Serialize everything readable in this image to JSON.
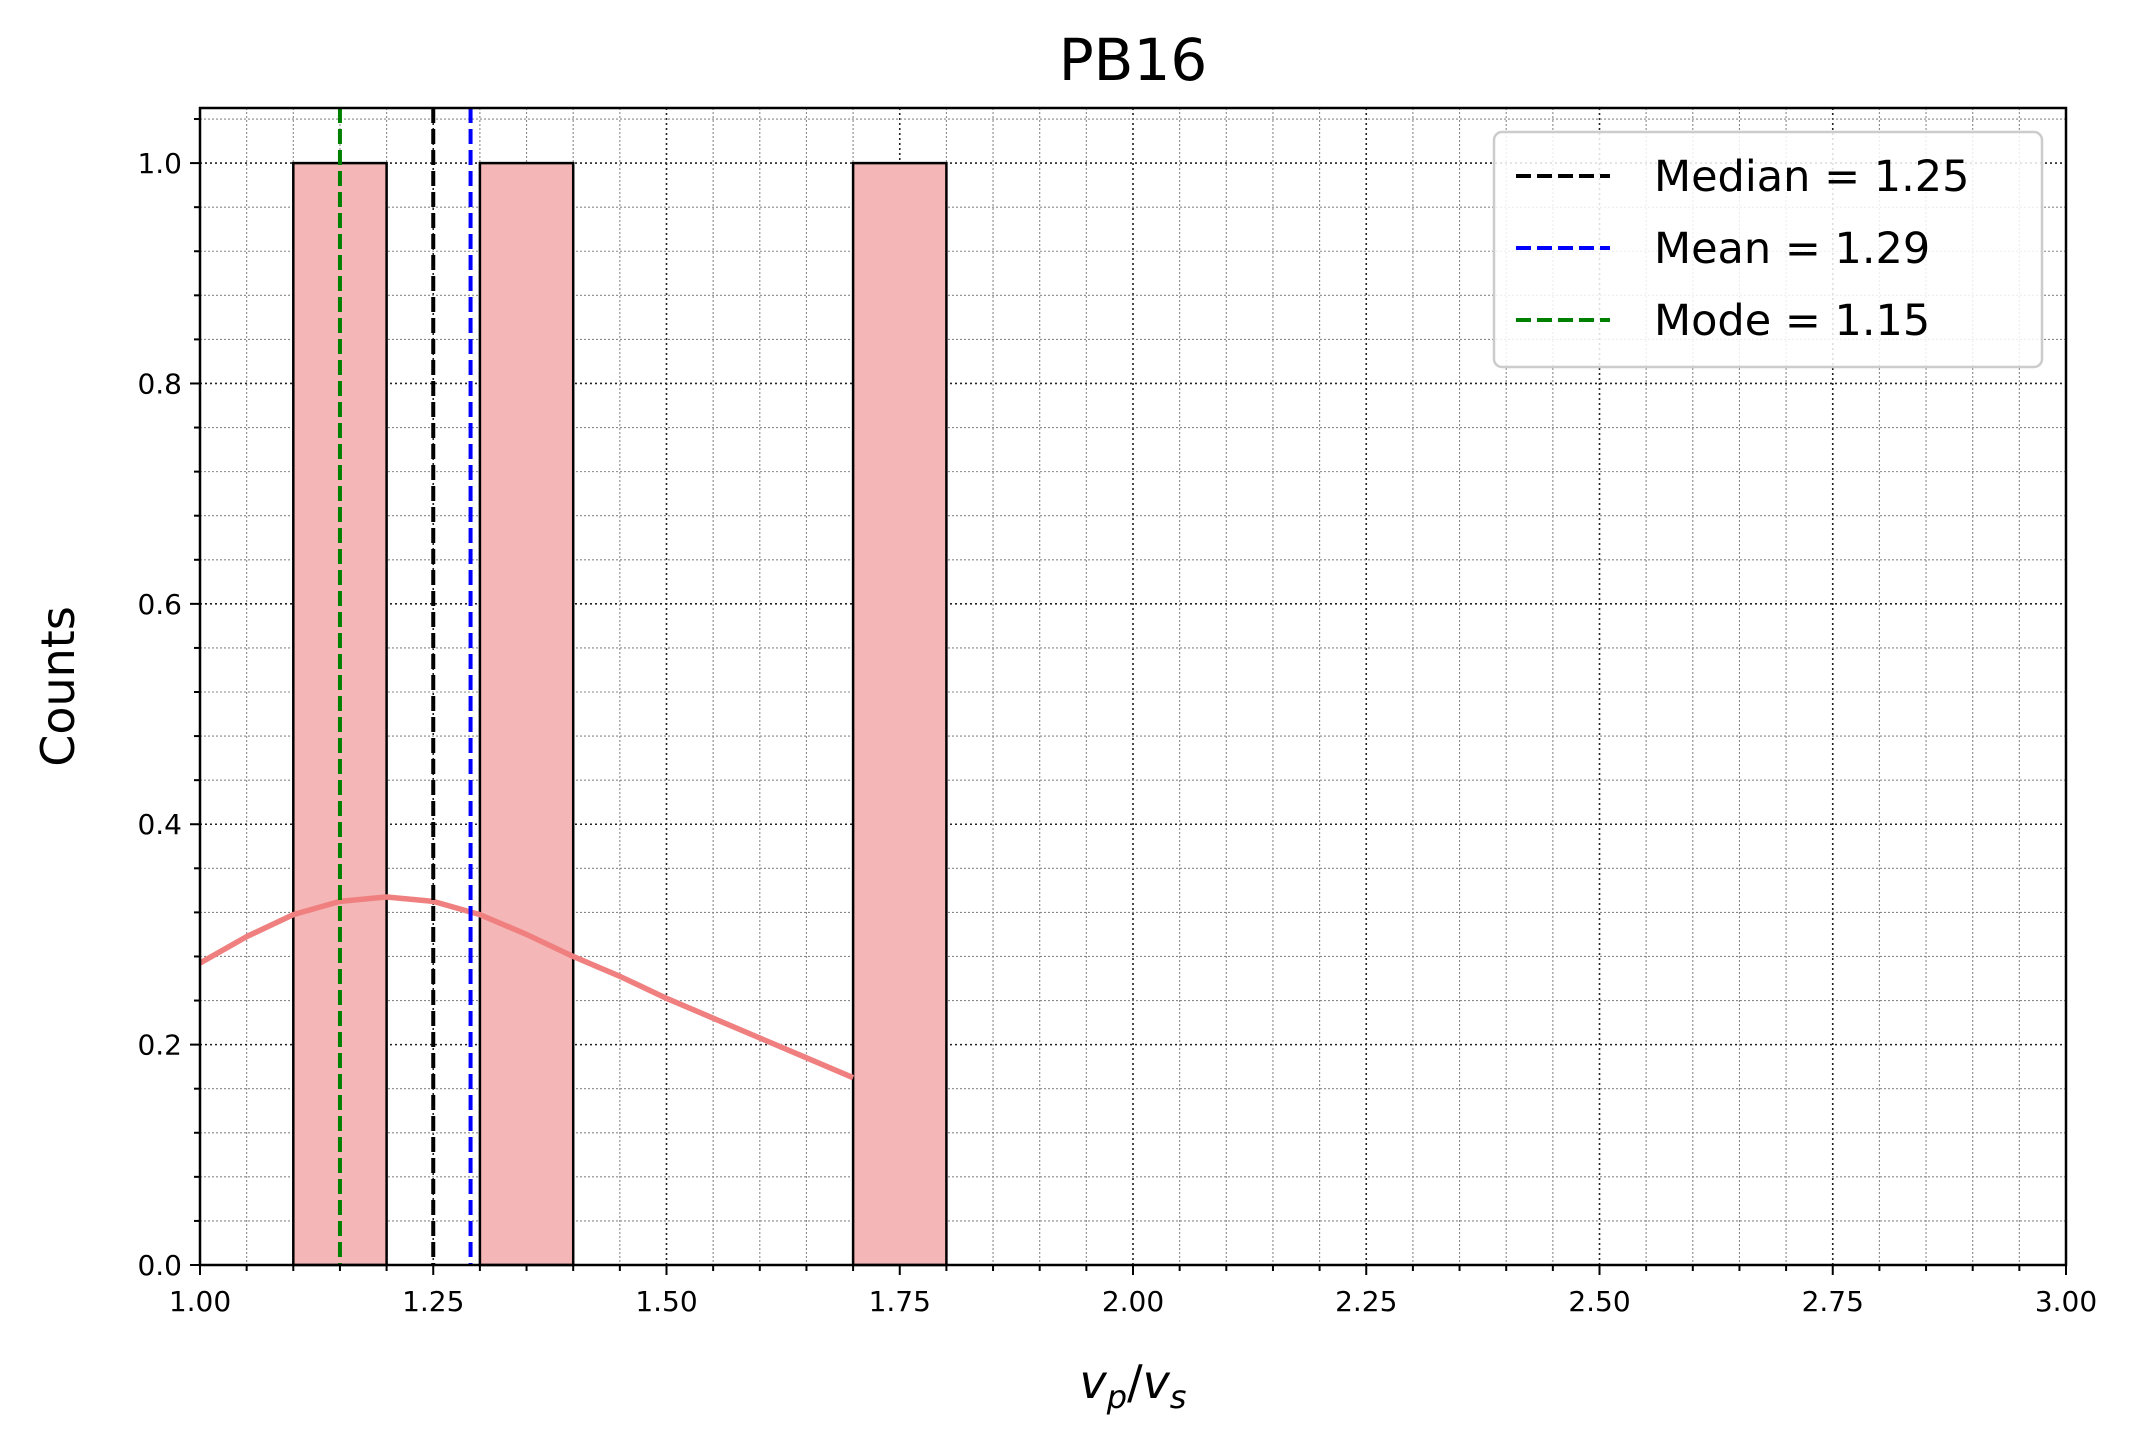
{
  "chart_data": {
    "type": "bar",
    "title": "PB16",
    "xlabel": "v_p/v_s",
    "ylabel": "Counts",
    "xlim": [
      1.0,
      3.0
    ],
    "ylim": [
      0.0,
      1.05
    ],
    "x_ticks": [
      "1.00",
      "1.25",
      "1.50",
      "1.75",
      "2.00",
      "2.25",
      "2.50",
      "2.75",
      "3.00"
    ],
    "y_ticks": [
      "0.0",
      "0.2",
      "0.4",
      "0.6",
      "0.8",
      "1.0"
    ],
    "grid": true,
    "legend_position": "top-right",
    "bins": [
      {
        "x0": 1.1,
        "x1": 1.2,
        "count": 1
      },
      {
        "x0": 1.3,
        "x1": 1.4,
        "count": 1
      },
      {
        "x0": 1.7,
        "x1": 1.8,
        "count": 1
      }
    ],
    "bar_color": "#f4b6b6",
    "kde": {
      "color": "#f08080",
      "x": [
        1.0,
        1.05,
        1.1,
        1.15,
        1.2,
        1.25,
        1.3,
        1.35,
        1.4,
        1.45,
        1.5,
        1.55,
        1.6,
        1.65,
        1.7
      ],
      "y": [
        0.274,
        0.298,
        0.318,
        0.33,
        0.334,
        0.33,
        0.318,
        0.3,
        0.28,
        0.262,
        0.242,
        0.224,
        0.206,
        0.188,
        0.17
      ]
    },
    "reference_lines": [
      {
        "label": "Median = 1.25",
        "x": 1.25,
        "color": "#000000"
      },
      {
        "label": "Mean = 1.29",
        "x": 1.29,
        "color": "#0000ff"
      },
      {
        "label": "Mode = 1.15",
        "x": 1.15,
        "color": "#008000"
      }
    ]
  }
}
